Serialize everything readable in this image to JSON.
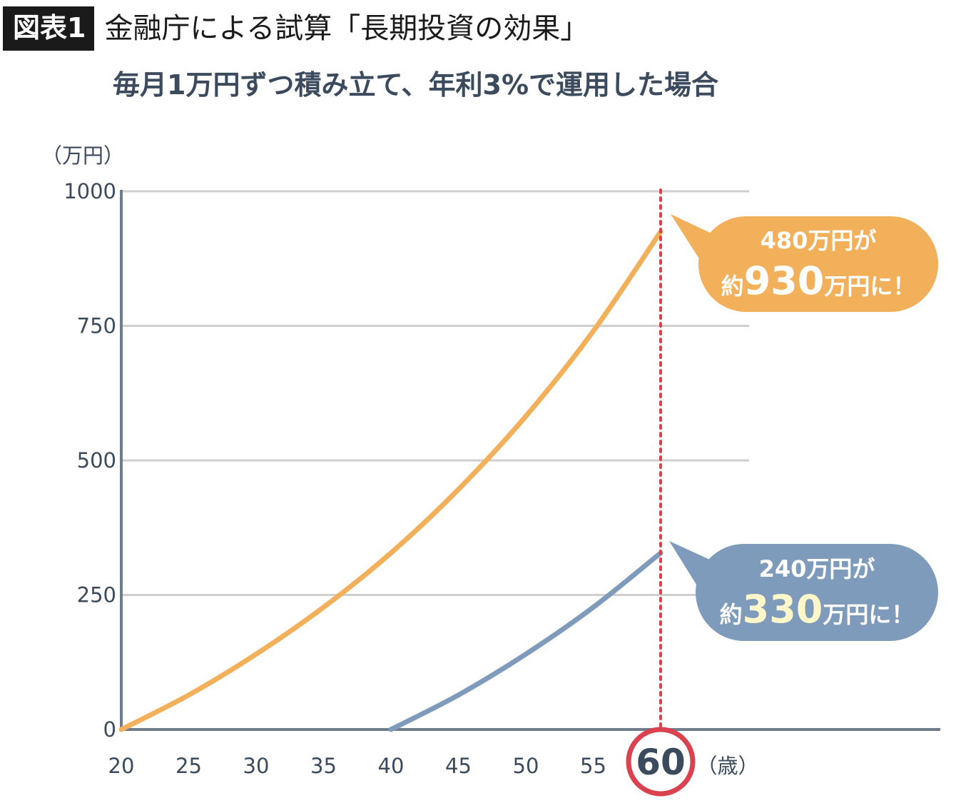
{
  "header": {
    "badge": "図表1",
    "title": "金融庁による試算「長期投資の効果」",
    "subtitle": "毎月1万円ずつ積み立て、年利3%で運用した場合"
  },
  "colors": {
    "orange": "#f2b05a",
    "blue": "#7f9bbb",
    "axis": "#6d7d8e",
    "grid": "#cfcfcf",
    "marker": "#d9424e",
    "text": "#3b4a5c"
  },
  "chart_data": {
    "type": "line",
    "title": "",
    "ylabel": "（万円）",
    "xlabel": "（歳）",
    "xlim": [
      20,
      60
    ],
    "ylim": [
      0,
      1000
    ],
    "xticks": [
      "20",
      "25",
      "30",
      "35",
      "40",
      "45",
      "50",
      "55",
      "60"
    ],
    "yticks": [
      "0",
      "250",
      "500",
      "750",
      "1000"
    ],
    "highlight_x": "60",
    "grid": true,
    "series": [
      {
        "color": "orange",
        "x": [
          20,
          25,
          30,
          35,
          40,
          45,
          50,
          55,
          60
        ],
        "y": [
          0,
          64,
          140,
          227,
          328,
          446,
          582,
          740,
          925
        ]
      },
      {
        "color": "blue",
        "x": [
          40,
          45,
          50,
          55,
          60
        ],
        "y": [
          0,
          64,
          140,
          227,
          328
        ]
      }
    ],
    "callouts": [
      {
        "id": "orange",
        "line1": "480万円が",
        "prefix": "約",
        "big": "930",
        "suffix": "万円に！",
        "big_color": "#ffffff"
      },
      {
        "id": "blue",
        "line1": "240万円が",
        "prefix": "約",
        "big": "330",
        "suffix": "万円に！",
        "big_color": "#fff6c9"
      }
    ]
  }
}
